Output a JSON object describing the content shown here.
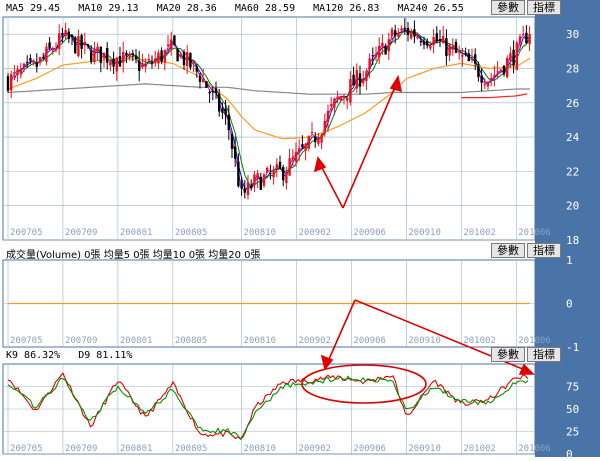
{
  "buttons": {
    "params": "參數",
    "indicators": "指標"
  },
  "price_panel": {
    "ma_labels": [
      {
        "label": "MA5",
        "value": "29.45",
        "color": "#111111"
      },
      {
        "label": "MA10",
        "value": "29.13",
        "color": "#111111"
      },
      {
        "label": "MA20",
        "value": "28.36",
        "color": "#111111"
      },
      {
        "label": "MA60",
        "value": "28.59",
        "color": "#111111"
      },
      {
        "label": "MA120",
        "value": "26.83",
        "color": "#111111"
      },
      {
        "label": "MA240",
        "value": "26.55",
        "color": "#111111"
      }
    ],
    "y_ticks": [
      "18",
      "20",
      "22",
      "24",
      "26",
      "28",
      "30"
    ]
  },
  "volume_panel": {
    "header": "成交量(Volume) 0張   均量5 0張   均量10 0張   均量20 0張",
    "y_ticks": [
      "-1",
      "0",
      "1"
    ]
  },
  "kd_panel": {
    "k_label": "K9 86.32%",
    "d_label": "D9 81.11%",
    "y_ticks": [
      "0",
      "25",
      "50",
      "75"
    ]
  },
  "x_tick_labels": [
    "200705",
    "200709",
    "200801",
    "200805",
    "200810",
    "200902",
    "200906",
    "200910",
    "201002",
    "201006"
  ],
  "colors": {
    "axis_bg": "#4a74a8",
    "grid": "#9fb2ca",
    "up": "#e8141c",
    "down": "#000000",
    "ma5": "#e000e0",
    "ma10": "#0000e0",
    "ma20": "#008000",
    "ma60": "#ff9a1a",
    "ma120": "#888888",
    "ma240": "#ff2020",
    "k": "#e00000",
    "d": "#009000",
    "annotation": "#e00000"
  },
  "chart_data": [
    {
      "type": "candlestick",
      "title": "",
      "x": [
        "2007-05",
        "2007-07",
        "2007-09",
        "2007-11",
        "2008-01",
        "2008-03",
        "2008-05",
        "2008-07",
        "2008-09",
        "2008-10",
        "2008-11",
        "2009-01",
        "2009-03",
        "2009-05",
        "2009-07",
        "2009-09",
        "2009-10",
        "2009-12",
        "2010-02",
        "2010-04",
        "2010-06",
        "2010-07"
      ],
      "close": [
        27.3,
        28.1,
        29.8,
        28.9,
        28.6,
        28.1,
        29.2,
        27.6,
        24.8,
        20.5,
        21.4,
        22.0,
        23.6,
        26.2,
        27.8,
        29.9,
        30.2,
        29.7,
        28.6,
        27.4,
        28.9,
        30.3
      ],
      "ylim": [
        18,
        31
      ],
      "series": [
        {
          "name": "MA60",
          "values": [
            26.8,
            27.4,
            28.2,
            28.4,
            28.6,
            28.5,
            28.3,
            27.5,
            26.2,
            25.2,
            24.4,
            23.9,
            24.0,
            24.6,
            25.4,
            26.6,
            27.4,
            28.0,
            28.3,
            28.0,
            28.1,
            28.6
          ]
        },
        {
          "name": "MA120",
          "values": [
            26.6,
            26.7,
            26.8,
            26.9,
            27.0,
            27.1,
            27.0,
            26.9,
            26.9,
            26.8,
            26.7,
            26.6,
            26.5,
            26.5,
            26.5,
            26.6,
            26.6,
            26.6,
            26.6,
            26.7,
            26.8,
            26.8
          ]
        },
        {
          "name": "MA240",
          "values": [
            null,
            null,
            null,
            null,
            null,
            null,
            null,
            null,
            null,
            null,
            null,
            null,
            null,
            null,
            null,
            null,
            null,
            null,
            26.3,
            26.3,
            26.4,
            26.55
          ]
        }
      ]
    },
    {
      "type": "line",
      "title": "",
      "ylim": [
        -1,
        1
      ],
      "x": [
        "2007-05",
        "2010-07"
      ],
      "series": [
        {
          "name": "成交量(Volume)",
          "values": [
            0,
            0
          ]
        }
      ]
    },
    {
      "type": "line",
      "title": "",
      "ylim": [
        0,
        100
      ],
      "x": [
        "2007-05",
        "2007-07",
        "2007-09",
        "2007-11",
        "2008-01",
        "2008-03",
        "2008-05",
        "2008-07",
        "2008-09",
        "2008-10",
        "2008-11",
        "2009-01",
        "2009-03",
        "2009-05",
        "2009-07",
        "2009-09",
        "2009-10",
        "2009-12",
        "2010-02",
        "2010-04",
        "2010-06",
        "2010-07"
      ],
      "series": [
        {
          "name": "K9",
          "values": [
            85,
            48,
            90,
            30,
            82,
            40,
            78,
            22,
            22,
            15,
            52,
            80,
            82,
            86,
            80,
            88,
            40,
            82,
            55,
            60,
            85,
            86
          ]
        },
        {
          "name": "D9",
          "values": [
            80,
            52,
            84,
            36,
            76,
            44,
            72,
            28,
            25,
            18,
            46,
            74,
            80,
            84,
            82,
            84,
            46,
            76,
            58,
            58,
            80,
            81
          ]
        }
      ]
    }
  ]
}
